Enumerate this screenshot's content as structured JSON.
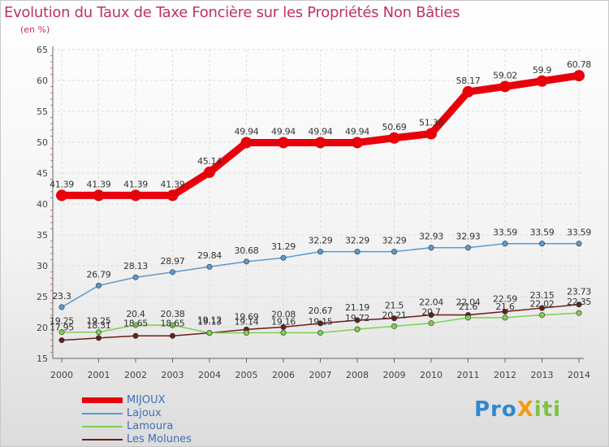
{
  "chart_data": {
    "type": "line",
    "title": "Evolution du Taux de Taxe Foncière sur les Propriétés Non Bâties",
    "ylabel": "(en %)",
    "xlabel": "",
    "categories": [
      "2000",
      "2001",
      "2002",
      "2003",
      "2004",
      "2005",
      "2006",
      "2007",
      "2008",
      "2009",
      "2010",
      "2011",
      "2012",
      "2013",
      "2014"
    ],
    "ylim": [
      15,
      65
    ],
    "yticks": [
      "15",
      "20",
      "25",
      "30",
      "35",
      "40",
      "45",
      "50",
      "55",
      "60",
      "65"
    ],
    "series": [
      {
        "name": "MIJOUX",
        "color": "#e8000b",
        "values": [
          41.39,
          41.39,
          41.39,
          41.39,
          45.14,
          49.94,
          49.94,
          49.94,
          49.94,
          50.69,
          51.38,
          58.17,
          59.02,
          59.9,
          60.78
        ],
        "labels": [
          "41.39",
          "41.39",
          "41.39",
          "41.39",
          "45.14",
          "49.94",
          "49.94",
          "49.94",
          "49.94",
          "50.69",
          "51.38",
          "58.17",
          "59.02",
          "59.9",
          "60.78"
        ]
      },
      {
        "name": "Lajoux",
        "color": "#5a9ad0",
        "values": [
          23.3,
          26.79,
          28.13,
          28.97,
          29.84,
          30.68,
          31.29,
          32.29,
          32.29,
          32.29,
          32.93,
          32.93,
          33.59,
          33.59,
          33.59
        ],
        "labels": [
          "23.3",
          "26.79",
          "28.13",
          "28.97",
          "29.84",
          "30.68",
          "31.29",
          "32.29",
          "32.29",
          "32.29",
          "32.93",
          "32.93",
          "33.59",
          "33.59",
          "33.59"
        ]
      },
      {
        "name": "Lamoura",
        "color": "#7ed04e",
        "values": [
          19.25,
          19.25,
          20.4,
          20.38,
          19.13,
          19.14,
          19.16,
          19.15,
          19.72,
          20.21,
          20.7,
          21.6,
          21.6,
          22.02,
          22.35
        ],
        "labels": [
          "19.25",
          "19.25",
          "20.4",
          "20.38",
          "19.13",
          "19.14",
          "19.16",
          "19.15",
          "19.72",
          "20.21",
          "20.7",
          "21.6",
          "21.6",
          "22.02",
          "22.35"
        ]
      },
      {
        "name": "Les Molunes",
        "color": "#6b1b1b",
        "values": [
          17.95,
          18.31,
          18.65,
          18.65,
          19.12,
          19.69,
          20.08,
          20.67,
          21.19,
          21.5,
          22.04,
          22.04,
          22.59,
          23.15,
          23.73
        ],
        "labels": [
          "17.95",
          "18.31",
          "18.65",
          "18.65",
          "19.12",
          "19.69",
          "20.08",
          "20.67",
          "21.19",
          "21.5",
          "22.04",
          "22.04",
          "22.59",
          "23.15",
          "23.73"
        ]
      }
    ]
  },
  "logo": {
    "text": "ProXiti",
    "parts": [
      "Pro",
      "X",
      "iti"
    ],
    "colors": [
      "#2f88d4",
      "#f39c12",
      "#7cc242"
    ]
  }
}
